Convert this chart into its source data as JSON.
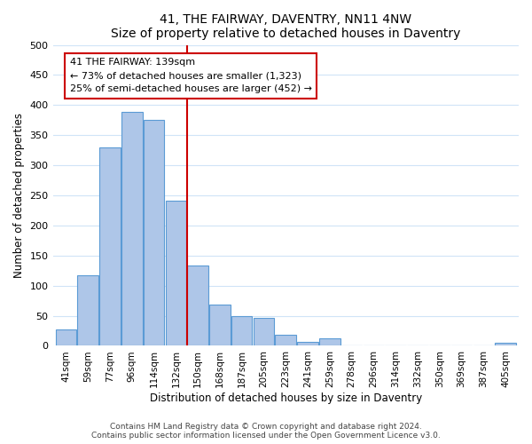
{
  "title": "41, THE FAIRWAY, DAVENTRY, NN11 4NW",
  "subtitle": "Size of property relative to detached houses in Daventry",
  "xlabel": "Distribution of detached houses by size in Daventry",
  "ylabel": "Number of detached properties",
  "bar_labels": [
    "41sqm",
    "59sqm",
    "77sqm",
    "96sqm",
    "114sqm",
    "132sqm",
    "150sqm",
    "168sqm",
    "187sqm",
    "205sqm",
    "223sqm",
    "241sqm",
    "259sqm",
    "278sqm",
    "296sqm",
    "314sqm",
    "332sqm",
    "350sqm",
    "369sqm",
    "387sqm",
    "405sqm"
  ],
  "bar_heights": [
    27,
    117,
    330,
    388,
    375,
    241,
    133,
    68,
    50,
    46,
    18,
    6,
    13,
    0,
    0,
    0,
    0,
    0,
    0,
    0,
    5
  ],
  "bar_color": "#aec6e8",
  "bar_edge_color": "#5b9bd5",
  "vline_x": 5.5,
  "vline_color": "#cc0000",
  "annotation_title": "41 THE FAIRWAY: 139sqm",
  "annotation_line1": "← 73% of detached houses are smaller (1,323)",
  "annotation_line2": "25% of semi-detached houses are larger (452) →",
  "annotation_box_color": "#ffffff",
  "annotation_box_edge": "#cc0000",
  "ylim": [
    0,
    500
  ],
  "yticks": [
    0,
    50,
    100,
    150,
    200,
    250,
    300,
    350,
    400,
    450,
    500
  ],
  "footer_line1": "Contains HM Land Registry data © Crown copyright and database right 2024.",
  "footer_line2": "Contains public sector information licensed under the Open Government Licence v3.0.",
  "figsize": [
    6.0,
    5.0
  ],
  "dpi": 100
}
